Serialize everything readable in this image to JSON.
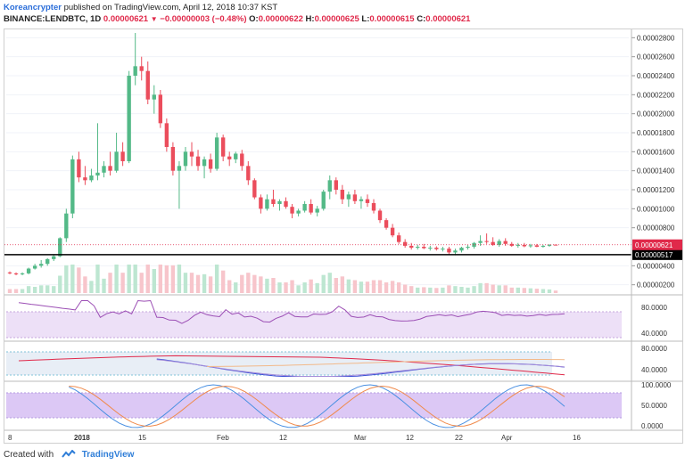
{
  "header": {
    "author": "Koreancrypter",
    "published_text": "published on TradingView.com, April 12, 2018 10:37 KST",
    "symbol": "BINANCE:LENDBTC, 1D",
    "last": "0.00000621",
    "change": "−0.00000003 (−0.48%)",
    "open_label": "O:",
    "open": "0.00000622",
    "high_label": "H:",
    "high": "0.00000625",
    "low_label": "L:",
    "low": "0.00000615",
    "close_label": "C:",
    "close": "0.00000621"
  },
  "price_axis": {
    "ticks": [
      "0.00002800",
      "0.00002600",
      "0.00002400",
      "0.00002200",
      "0.00002000",
      "0.00001800",
      "0.00001600",
      "0.00001400",
      "0.00001200",
      "0.00001000",
      "0.00000800",
      "0.00000400",
      "0.00000200"
    ],
    "tick_values": [
      2800,
      2600,
      2400,
      2200,
      2000,
      1800,
      1600,
      1400,
      1200,
      1000,
      800,
      400,
      200
    ],
    "last_price_label": "0.00000621",
    "hline_label": "0.00000517"
  },
  "rsi_axis": {
    "ticks": [
      "80.0000",
      "40.0000"
    ]
  },
  "mid_axis": {
    "ticks": [
      "80.0000",
      "40.0000"
    ]
  },
  "stoch_axis": {
    "ticks": [
      "100.0000",
      "50.0000",
      "0.0000"
    ]
  },
  "time_axis": {
    "labels": [
      "8",
      "2018",
      "15",
      "Feb",
      "12",
      "Mar",
      "12",
      "22",
      "Apr",
      "16"
    ]
  },
  "colors": {
    "up": "#53b987",
    "down": "#eb4d5c",
    "rsi": "#9c27b0",
    "band": "#e9d6f5",
    "hline": "#000000",
    "lastprice": "#e0294a"
  },
  "footer": {
    "created_with": "Created with",
    "brand": "TradingView"
  },
  "chart_data": {
    "type": "candlestick",
    "unit": "1e-8 BTC",
    "price_range": [
      150,
      2850
    ],
    "candles": [
      [
        330,
        340,
        310,
        320
      ],
      [
        320,
        330,
        300,
        310
      ],
      [
        310,
        330,
        300,
        320
      ],
      [
        320,
        380,
        310,
        370
      ],
      [
        370,
        420,
        360,
        400
      ],
      [
        400,
        460,
        380,
        420
      ],
      [
        420,
        480,
        400,
        470
      ],
      [
        470,
        520,
        450,
        500
      ],
      [
        500,
        700,
        490,
        690
      ],
      [
        690,
        1000,
        650,
        950
      ],
      [
        950,
        1560,
        900,
        1520
      ],
      [
        1520,
        1600,
        1280,
        1330
      ],
      [
        1330,
        1450,
        1250,
        1300
      ],
      [
        1300,
        1420,
        1280,
        1350
      ],
      [
        1350,
        1900,
        1300,
        1380
      ],
      [
        1380,
        1500,
        1330,
        1450
      ],
      [
        1450,
        1600,
        1350,
        1400
      ],
      [
        1400,
        1800,
        1380,
        1600
      ],
      [
        1600,
        1700,
        1450,
        1500
      ],
      [
        1500,
        2450,
        1480,
        2400
      ],
      [
        2400,
        2850,
        2300,
        2500
      ],
      [
        2500,
        2600,
        2350,
        2450
      ],
      [
        2450,
        2550,
        2100,
        2150
      ],
      [
        2150,
        2300,
        2000,
        2200
      ],
      [
        2200,
        2250,
        1850,
        1900
      ],
      [
        1900,
        1950,
        1600,
        1650
      ],
      [
        1650,
        1700,
        1350,
        1400
      ],
      [
        1400,
        1500,
        1000,
        1450
      ],
      [
        1450,
        1650,
        1400,
        1600
      ],
      [
        1600,
        1700,
        1450,
        1550
      ],
      [
        1550,
        1620,
        1400,
        1450
      ],
      [
        1450,
        1550,
        1320,
        1520
      ],
      [
        1520,
        1580,
        1380,
        1420
      ],
      [
        1420,
        1800,
        1400,
        1750
      ],
      [
        1750,
        1780,
        1500,
        1550
      ],
      [
        1550,
        1600,
        1450,
        1520
      ],
      [
        1520,
        1600,
        1480,
        1580
      ],
      [
        1580,
        1620,
        1400,
        1450
      ],
      [
        1450,
        1500,
        1250,
        1300
      ],
      [
        1300,
        1320,
        1100,
        1120
      ],
      [
        1120,
        1150,
        950,
        1000
      ],
      [
        1000,
        1150,
        980,
        1100
      ],
      [
        1100,
        1200,
        1020,
        1050
      ],
      [
        1050,
        1100,
        980,
        1080
      ],
      [
        1080,
        1120,
        1000,
        1020
      ],
      [
        1020,
        1050,
        900,
        950
      ],
      [
        950,
        1000,
        920,
        980
      ],
      [
        980,
        1080,
        960,
        1050
      ],
      [
        1050,
        1100,
        940,
        960
      ],
      [
        960,
        1030,
        920,
        1000
      ],
      [
        1000,
        1200,
        980,
        1180
      ],
      [
        1180,
        1350,
        1100,
        1300
      ],
      [
        1300,
        1330,
        1150,
        1200
      ],
      [
        1200,
        1250,
        1050,
        1100
      ],
      [
        1100,
        1180,
        1020,
        1150
      ],
      [
        1150,
        1200,
        1050,
        1080
      ],
      [
        1080,
        1130,
        1000,
        1100
      ],
      [
        1100,
        1150,
        1020,
        1060
      ],
      [
        1060,
        1100,
        950,
        980
      ],
      [
        980,
        1000,
        850,
        880
      ],
      [
        880,
        900,
        780,
        800
      ],
      [
        800,
        840,
        700,
        720
      ],
      [
        720,
        750,
        630,
        650
      ],
      [
        650,
        680,
        590,
        610
      ],
      [
        610,
        640,
        570,
        590
      ],
      [
        590,
        620,
        570,
        600
      ],
      [
        600,
        630,
        575,
        585
      ],
      [
        585,
        610,
        560,
        590
      ],
      [
        590,
        605,
        560,
        575
      ],
      [
        575,
        600,
        550,
        580
      ],
      [
        580,
        600,
        520,
        540
      ],
      [
        540,
        580,
        510,
        560
      ],
      [
        560,
        600,
        540,
        590
      ],
      [
        590,
        620,
        570,
        600
      ],
      [
        600,
        650,
        580,
        640
      ],
      [
        640,
        720,
        610,
        660
      ],
      [
        660,
        740,
        630,
        650
      ],
      [
        650,
        700,
        610,
        620
      ],
      [
        620,
        680,
        600,
        660
      ],
      [
        660,
        690,
        610,
        630
      ],
      [
        630,
        650,
        600,
        610
      ],
      [
        610,
        640,
        590,
        620
      ],
      [
        620,
        640,
        595,
        605
      ],
      [
        605,
        630,
        590,
        615
      ],
      [
        615,
        630,
        595,
        600
      ],
      [
        600,
        620,
        590,
        610
      ],
      [
        610,
        625,
        600,
        622
      ],
      [
        622,
        625,
        615,
        621
      ]
    ],
    "horizontal_lines": [
      {
        "value": 517,
        "label": "0.00000517"
      }
    ],
    "indicators": [
      "RSI",
      "Stoch RSI"
    ]
  }
}
